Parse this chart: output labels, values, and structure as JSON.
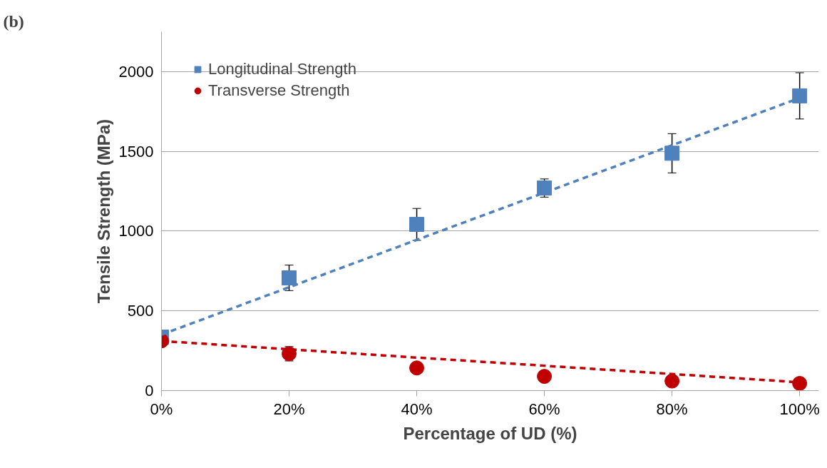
{
  "chart_data": {
    "type": "scatter",
    "xlabel": "Percentage of UD (%)",
    "ylabel": "Tensile Strength (MPa)",
    "annotations": [
      "(b)"
    ],
    "x": [
      0,
      20,
      40,
      60,
      80,
      100
    ],
    "xlim": [
      0,
      103
    ],
    "xticks": [
      {
        "value": 0,
        "label": "0%"
      },
      {
        "value": 20,
        "label": "20%"
      },
      {
        "value": 40,
        "label": "40%"
      },
      {
        "value": 60,
        "label": "60%"
      },
      {
        "value": 80,
        "label": "80%"
      },
      {
        "value": 100,
        "label": "100%"
      }
    ],
    "ylim": [
      0,
      2250
    ],
    "yticks": [
      0,
      500,
      1000,
      1500,
      2000
    ],
    "grid": "y",
    "legend": "top left",
    "series": [
      {
        "name": "Longitudinal Strength",
        "color": "#4f81bd",
        "marker": "square",
        "values": [
          335,
          707,
          1042,
          1270,
          1488,
          1848
        ],
        "errors": [
          null,
          80,
          100,
          57,
          123,
          145
        ]
      },
      {
        "name": "Transverse Strength",
        "color": "#c00000",
        "marker": "circle",
        "values": [
          312,
          231,
          142,
          89,
          60,
          45
        ],
        "errors": [
          null,
          45,
          null,
          null,
          null,
          null
        ]
      },
      {
        "type": "line",
        "color": "#4f81bd",
        "line_style": "dashed",
        "values": [
          351,
          648,
          945,
          1241,
          1538,
          1835
        ]
      },
      {
        "type": "line",
        "color": "#c00000",
        "line_style": "dashed",
        "values": [
          311,
          259,
          207,
          156,
          104,
          52
        ]
      }
    ]
  }
}
